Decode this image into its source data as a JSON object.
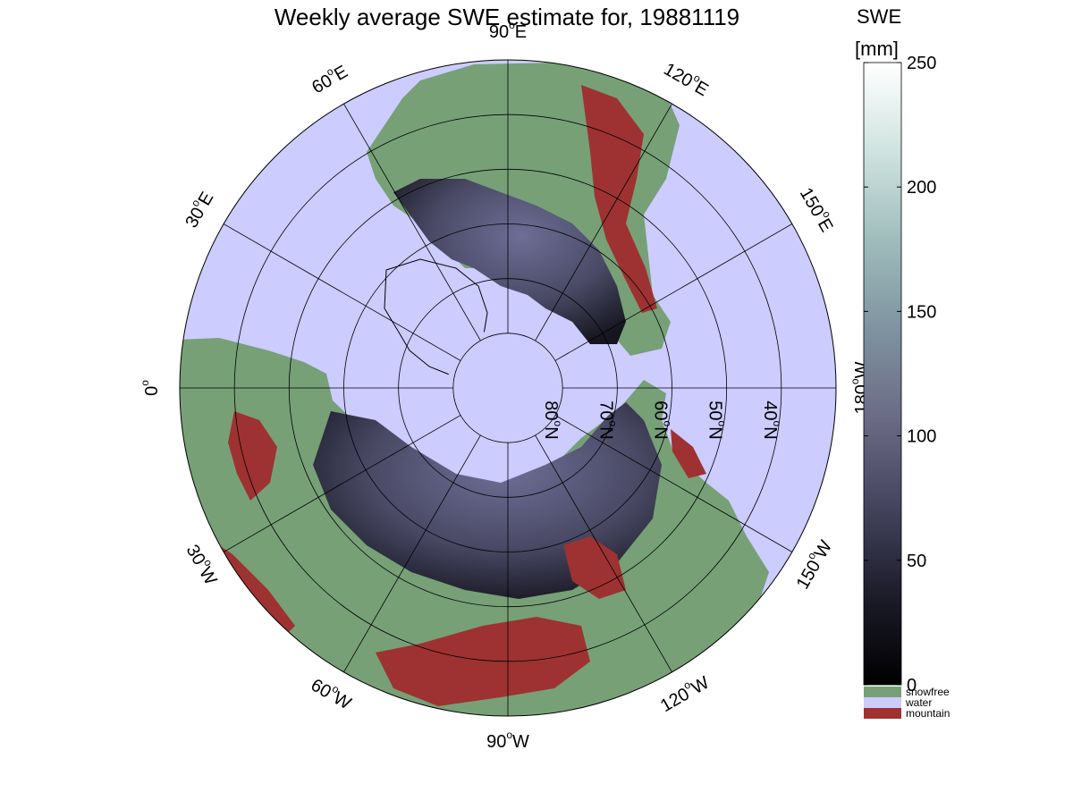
{
  "map": {
    "title": "Weekly average SWE estimate for, 19881119",
    "variable": "SWE",
    "projection": "north-polar stereographic",
    "longitude_labels": [
      {
        "lon": 90,
        "hemi": "W",
        "value": "90",
        "suffix": "W"
      },
      {
        "lon": 120,
        "hemi": "W",
        "value": "120",
        "suffix": "W"
      },
      {
        "lon": 150,
        "hemi": "W",
        "value": "150",
        "suffix": "W"
      },
      {
        "lon": 180,
        "hemi": "W",
        "value": "180",
        "suffix": "W"
      },
      {
        "lon": 150,
        "hemi": "E",
        "value": "150",
        "suffix": "E"
      },
      {
        "lon": 120,
        "hemi": "E",
        "value": "120",
        "suffix": "E"
      },
      {
        "lon": 90,
        "hemi": "E",
        "value": "90",
        "suffix": "E"
      },
      {
        "lon": 60,
        "hemi": "E",
        "value": "60",
        "suffix": "E"
      },
      {
        "lon": 30,
        "hemi": "E",
        "value": "30",
        "suffix": "E"
      },
      {
        "lon": 0,
        "hemi": "",
        "value": "0",
        "suffix": ""
      },
      {
        "lon": 30,
        "hemi": "W",
        "value": "30",
        "suffix": "W"
      },
      {
        "lon": 60,
        "hemi": "W",
        "value": "60",
        "suffix": "W"
      }
    ],
    "latitude_labels": [
      {
        "lat": 80,
        "value": "80",
        "suffix": "N"
      },
      {
        "lat": 70,
        "value": "70",
        "suffix": "N"
      },
      {
        "lat": 60,
        "value": "60",
        "suffix": "N"
      },
      {
        "lat": 50,
        "value": "50",
        "suffix": "N"
      },
      {
        "lat": 40,
        "value": "40",
        "suffix": "N"
      }
    ],
    "latitude_circles": [
      80,
      70,
      60,
      50,
      40
    ],
    "colors": {
      "water": "#ccccff",
      "snowfree": "#77a077",
      "mountain": "#9e3232",
      "snow_low": "#0b0b12",
      "snow_mid": "#4a4a66",
      "snow_high": "#6e6e96"
    }
  },
  "colorbar": {
    "title_line1": "SWE",
    "title_line2": "[mm]",
    "min": 0,
    "max": 250,
    "ticks": [
      "0",
      "50",
      "100",
      "150",
      "200",
      "250"
    ],
    "gradient_stops": [
      "#000000",
      "#1c1c2a",
      "#44445e",
      "#6b6b86",
      "#7e93a0",
      "#9fbcbc",
      "#cfe3df",
      "#ffffff"
    ],
    "categories": [
      {
        "label": "snowfree",
        "color": "#77a077"
      },
      {
        "label": "water",
        "color": "#ccccff"
      },
      {
        "label": "mountain",
        "color": "#9e3232"
      }
    ]
  }
}
